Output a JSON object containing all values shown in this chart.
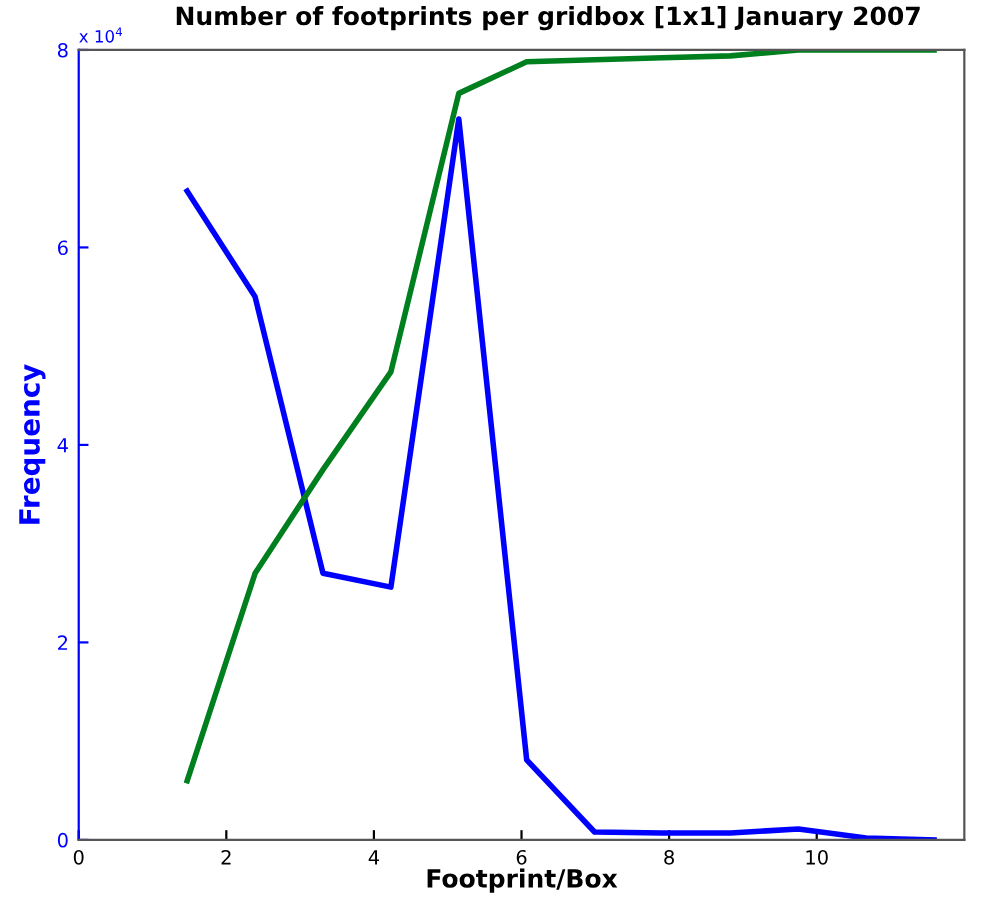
{
  "chart_data": {
    "type": "line",
    "title": "Number of footprints per gridbox [1x1] January 2007",
    "xlabel": "Footprint/Box",
    "ylabel": "Frequency",
    "annotations": [
      "x 10$^{4}$"
    ],
    "x": [
      1.47,
      2.39,
      3.31,
      4.23,
      5.15,
      6.07,
      6.99,
      7.91,
      8.83,
      9.75,
      10.67,
      11.59
    ],
    "series": [
      {
        "color": "#0000ff",
        "values": [
          6.57,
          5.5,
          2.7,
          2.56,
          7.3,
          0.81,
          0.08,
          0.07,
          0.07,
          0.11,
          0.02,
          0
        ]
      },
      {
        "color": "#007f1f",
        "values": [
          0.6,
          2.7,
          3.75,
          4.74,
          7.56,
          7.88,
          7.9,
          7.92,
          7.94,
          8.0,
          8.0,
          8.0
        ]
      }
    ],
    "xlim": [
      0,
      12
    ],
    "ylim": [
      0,
      8
    ],
    "xticks": [
      0,
      2,
      4,
      6,
      8,
      10
    ],
    "yticks": [
      0,
      2,
      4,
      6,
      8
    ],
    "grid": false,
    "legend": false
  }
}
